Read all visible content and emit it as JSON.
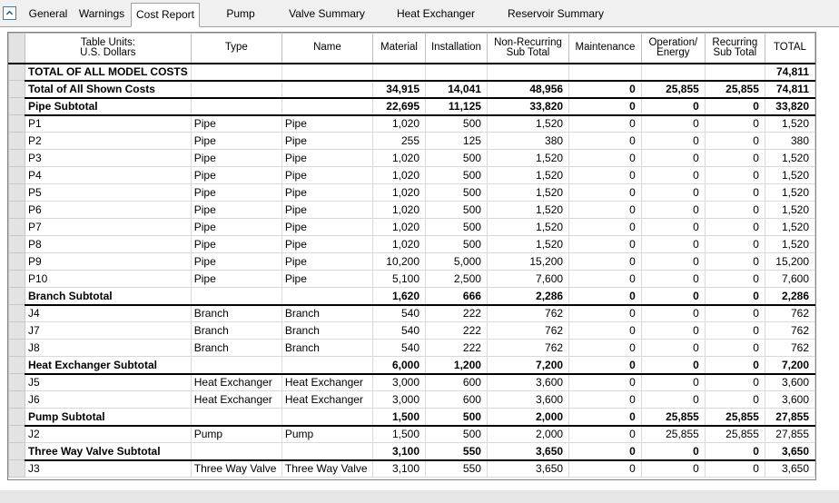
{
  "tabs": [
    {
      "label": "General",
      "active": false
    },
    {
      "label": "Warnings",
      "active": false
    },
    {
      "label": "Cost Report",
      "active": true
    },
    {
      "label": "Pump Summary",
      "active": false
    },
    {
      "label": "Valve Summary",
      "active": false
    },
    {
      "label": "Heat Exchanger Summary",
      "active": false
    },
    {
      "label": "Reservoir Summary",
      "active": false
    }
  ],
  "columns": [
    {
      "label_line1": "Table Units:",
      "label_line2": "U.S. Dollars"
    },
    {
      "label_line1": "Type",
      "label_line2": ""
    },
    {
      "label_line1": "Name",
      "label_line2": ""
    },
    {
      "label_line1": "Material",
      "label_line2": ""
    },
    {
      "label_line1": "Installation",
      "label_line2": ""
    },
    {
      "label_line1": "Non-Recurring",
      "label_line2": "Sub Total"
    },
    {
      "label_line1": "Maintenance",
      "label_line2": ""
    },
    {
      "label_line1": "Operation/",
      "label_line2": "Energy"
    },
    {
      "label_line1": "Recurring",
      "label_line2": "Sub Total"
    },
    {
      "label_line1": "TOTAL",
      "label_line2": ""
    }
  ],
  "rows": [
    {
      "kind": "total",
      "cells": [
        "TOTAL OF ALL MODEL COSTS",
        "",
        "",
        "",
        "",
        "",
        "",
        "",
        "",
        "74,811"
      ]
    },
    {
      "kind": "bold",
      "cells": [
        "Total of All Shown Costs",
        "",
        "",
        "34,915",
        "14,041",
        "48,956",
        "0",
        "25,855",
        "25,855",
        "74,811"
      ]
    },
    {
      "kind": "bold",
      "cells": [
        "Pipe Subtotal",
        "",
        "",
        "22,695",
        "11,125",
        "33,820",
        "0",
        "0",
        "0",
        "33,820"
      ]
    },
    {
      "kind": "item",
      "cells": [
        "P1",
        "Pipe",
        "Pipe",
        "1,020",
        "500",
        "1,520",
        "0",
        "0",
        "0",
        "1,520"
      ]
    },
    {
      "kind": "item",
      "cells": [
        "P2",
        "Pipe",
        "Pipe",
        "255",
        "125",
        "380",
        "0",
        "0",
        "0",
        "380"
      ]
    },
    {
      "kind": "item",
      "cells": [
        "P3",
        "Pipe",
        "Pipe",
        "1,020",
        "500",
        "1,520",
        "0",
        "0",
        "0",
        "1,520"
      ]
    },
    {
      "kind": "item",
      "cells": [
        "P4",
        "Pipe",
        "Pipe",
        "1,020",
        "500",
        "1,520",
        "0",
        "0",
        "0",
        "1,520"
      ]
    },
    {
      "kind": "item",
      "cells": [
        "P5",
        "Pipe",
        "Pipe",
        "1,020",
        "500",
        "1,520",
        "0",
        "0",
        "0",
        "1,520"
      ]
    },
    {
      "kind": "item",
      "cells": [
        "P6",
        "Pipe",
        "Pipe",
        "1,020",
        "500",
        "1,520",
        "0",
        "0",
        "0",
        "1,520"
      ]
    },
    {
      "kind": "item",
      "cells": [
        "P7",
        "Pipe",
        "Pipe",
        "1,020",
        "500",
        "1,520",
        "0",
        "0",
        "0",
        "1,520"
      ]
    },
    {
      "kind": "item",
      "cells": [
        "P8",
        "Pipe",
        "Pipe",
        "1,020",
        "500",
        "1,520",
        "0",
        "0",
        "0",
        "1,520"
      ]
    },
    {
      "kind": "item",
      "cells": [
        "P9",
        "Pipe",
        "Pipe",
        "10,200",
        "5,000",
        "15,200",
        "0",
        "0",
        "0",
        "15,200"
      ]
    },
    {
      "kind": "item",
      "cells": [
        "P10",
        "Pipe",
        "Pipe",
        "5,100",
        "2,500",
        "7,600",
        "0",
        "0",
        "0",
        "7,600"
      ]
    },
    {
      "kind": "bold",
      "cells": [
        "Branch Subtotal",
        "",
        "",
        "1,620",
        "666",
        "2,286",
        "0",
        "0",
        "0",
        "2,286"
      ]
    },
    {
      "kind": "item",
      "cells": [
        "J4",
        "Branch",
        "Branch",
        "540",
        "222",
        "762",
        "0",
        "0",
        "0",
        "762"
      ]
    },
    {
      "kind": "item",
      "cells": [
        "J7",
        "Branch",
        "Branch",
        "540",
        "222",
        "762",
        "0",
        "0",
        "0",
        "762"
      ]
    },
    {
      "kind": "item",
      "cells": [
        "J8",
        "Branch",
        "Branch",
        "540",
        "222",
        "762",
        "0",
        "0",
        "0",
        "762"
      ]
    },
    {
      "kind": "bold",
      "cells": [
        "Heat Exchanger Subtotal",
        "",
        "",
        "6,000",
        "1,200",
        "7,200",
        "0",
        "0",
        "0",
        "7,200"
      ]
    },
    {
      "kind": "item",
      "cells": [
        "J5",
        "Heat Exchanger",
        "Heat Exchanger",
        "3,000",
        "600",
        "3,600",
        "0",
        "0",
        "0",
        "3,600"
      ]
    },
    {
      "kind": "item",
      "cells": [
        "J6",
        "Heat Exchanger",
        "Heat Exchanger",
        "3,000",
        "600",
        "3,600",
        "0",
        "0",
        "0",
        "3,600"
      ]
    },
    {
      "kind": "bold",
      "cells": [
        "Pump Subtotal",
        "",
        "",
        "1,500",
        "500",
        "2,000",
        "0",
        "25,855",
        "25,855",
        "27,855"
      ]
    },
    {
      "kind": "item",
      "cells": [
        "J2",
        "Pump",
        "Pump",
        "1,500",
        "500",
        "2,000",
        "0",
        "25,855",
        "25,855",
        "27,855"
      ]
    },
    {
      "kind": "bold",
      "cells": [
        "Three Way Valve Subtotal",
        "",
        "",
        "3,100",
        "550",
        "3,650",
        "0",
        "0",
        "0",
        "3,650"
      ]
    },
    {
      "kind": "item",
      "cells": [
        "J3",
        "Three Way Valve",
        "Three Way Valve",
        "3,100",
        "550",
        "3,650",
        "0",
        "0",
        "0",
        "3,650"
      ]
    }
  ]
}
